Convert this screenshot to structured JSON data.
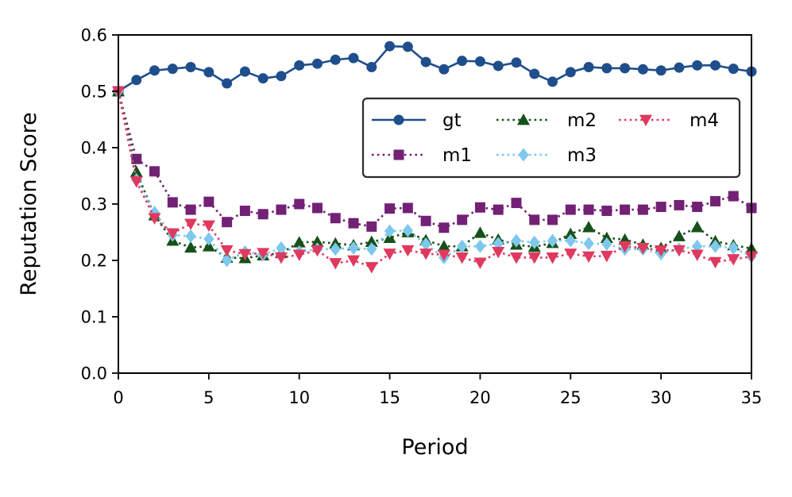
{
  "chart_data": {
    "type": "line",
    "title": "",
    "xlabel": "Period",
    "ylabel": "Reputation Score",
    "xlim": [
      0,
      35
    ],
    "ylim": [
      0.0,
      0.6
    ],
    "xticks": [
      0,
      5,
      10,
      15,
      20,
      25,
      30,
      35
    ],
    "xtick_labels": [
      "0",
      "5",
      "10",
      "15",
      "20",
      "25",
      "30",
      "35"
    ],
    "yticks": [
      0.0,
      0.1,
      0.2,
      0.3,
      0.4,
      0.5,
      0.6
    ],
    "ytick_labels": [
      "0.0",
      "0.1",
      "0.2",
      "0.3",
      "0.4",
      "0.5",
      "0.6"
    ],
    "grid": false,
    "legend_position": "upper-right",
    "x": [
      0,
      1,
      2,
      3,
      4,
      5,
      6,
      7,
      8,
      9,
      10,
      11,
      12,
      13,
      14,
      15,
      16,
      17,
      18,
      19,
      20,
      21,
      22,
      23,
      24,
      25,
      26,
      27,
      28,
      29,
      30,
      31,
      32,
      33,
      34,
      35
    ],
    "series": [
      {
        "name": "gt",
        "color": "#1f4e8c",
        "marker": "circle",
        "linestyle": "solid",
        "values": [
          0.5,
          0.52,
          0.537,
          0.54,
          0.543,
          0.534,
          0.514,
          0.535,
          0.523,
          0.527,
          0.546,
          0.549,
          0.556,
          0.559,
          0.543,
          0.58,
          0.579,
          0.552,
          0.539,
          0.554,
          0.553,
          0.545,
          0.551,
          0.531,
          0.517,
          0.534,
          0.543,
          0.541,
          0.541,
          0.539,
          0.537,
          0.542,
          0.546,
          0.546,
          0.54,
          0.535
        ]
      },
      {
        "name": "m1",
        "color": "#722175",
        "marker": "square",
        "linestyle": "dotted",
        "values": [
          0.5,
          0.38,
          0.358,
          0.303,
          0.29,
          0.304,
          0.268,
          0.288,
          0.282,
          0.29,
          0.3,
          0.293,
          0.275,
          0.266,
          0.26,
          0.292,
          0.293,
          0.27,
          0.258,
          0.272,
          0.294,
          0.29,
          0.302,
          0.272,
          0.272,
          0.29,
          0.29,
          0.288,
          0.29,
          0.29,
          0.295,
          0.298,
          0.295,
          0.305,
          0.314,
          0.293
        ]
      },
      {
        "name": "m2",
        "color": "#16501a",
        "marker": "triangle-up",
        "linestyle": "dotted",
        "values": [
          0.5,
          0.357,
          0.28,
          0.235,
          0.223,
          0.225,
          0.205,
          0.204,
          0.209,
          0.213,
          0.232,
          0.233,
          0.23,
          0.227,
          0.233,
          0.24,
          0.25,
          0.236,
          0.225,
          0.225,
          0.249,
          0.237,
          0.228,
          0.224,
          0.231,
          0.247,
          0.259,
          0.24,
          0.237,
          0.228,
          0.222,
          0.243,
          0.259,
          0.234,
          0.227,
          0.221
        ]
      },
      {
        "name": "m3",
        "color": "#7ec8ec",
        "marker": "diamond",
        "linestyle": "dotted",
        "values": [
          0.5,
          0.343,
          0.285,
          0.245,
          0.243,
          0.238,
          0.2,
          0.215,
          0.21,
          0.222,
          0.215,
          0.22,
          0.22,
          0.222,
          0.22,
          0.252,
          0.253,
          0.229,
          0.205,
          0.225,
          0.225,
          0.23,
          0.235,
          0.232,
          0.235,
          0.235,
          0.23,
          0.229,
          0.22,
          0.22,
          0.212,
          0.22,
          0.225,
          0.225,
          0.222,
          0.207
        ]
      },
      {
        "name": "m4",
        "color": "#e0395f",
        "marker": "triangle-down",
        "linestyle": "dotted",
        "values": [
          0.5,
          0.34,
          0.275,
          0.248,
          0.265,
          0.262,
          0.218,
          0.211,
          0.213,
          0.205,
          0.21,
          0.218,
          0.195,
          0.2,
          0.188,
          0.212,
          0.218,
          0.212,
          0.21,
          0.205,
          0.196,
          0.215,
          0.205,
          0.205,
          0.205,
          0.212,
          0.207,
          0.208,
          0.225,
          0.222,
          0.218,
          0.218,
          0.21,
          0.197,
          0.202,
          0.207
        ]
      }
    ]
  }
}
